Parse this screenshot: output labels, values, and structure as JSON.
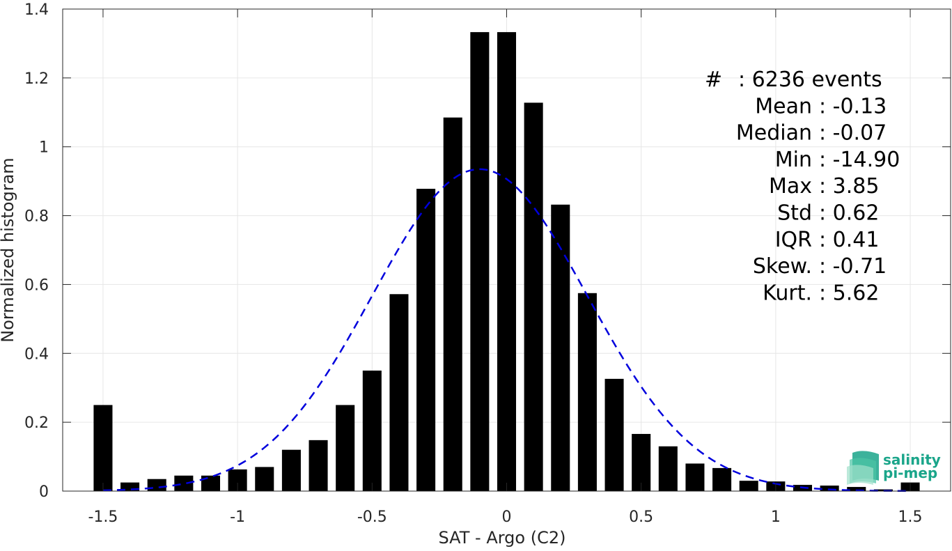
{
  "chart_data": {
    "type": "bar",
    "xlabel": "SAT - Argo (C2)",
    "ylabel": "Normalized histogram",
    "xlim": [
      -1.65,
      1.65
    ],
    "ylim": [
      0,
      1.4
    ],
    "x_ticks": [
      {
        "value": -1.5,
        "label": "-1.5"
      },
      {
        "value": -1,
        "label": "-1"
      },
      {
        "value": -0.5,
        "label": "-0.5"
      },
      {
        "value": 0,
        "label": "0"
      },
      {
        "value": 0.5,
        "label": "0.5"
      },
      {
        "value": 1,
        "label": "1"
      },
      {
        "value": 1.5,
        "label": "1.5"
      }
    ],
    "y_ticks": [
      {
        "value": 0,
        "label": "0"
      },
      {
        "value": 0.2,
        "label": "0.2"
      },
      {
        "value": 0.4,
        "label": "0.4"
      },
      {
        "value": 0.6,
        "label": "0.6"
      },
      {
        "value": 0.8,
        "label": "0.8"
      },
      {
        "value": 1,
        "label": "1"
      },
      {
        "value": 1.2,
        "label": "1.2"
      },
      {
        "value": 1.4,
        "label": "1.4"
      }
    ],
    "grid": true,
    "bar_width": 0.07,
    "bar_color": "#000000",
    "x": [
      -1.5,
      -1.4,
      -1.3,
      -1.2,
      -1.1,
      -1.0,
      -0.9,
      -0.8,
      -0.7,
      -0.6,
      -0.5,
      -0.4,
      -0.3,
      -0.2,
      -0.1,
      0.0,
      0.1,
      0.2,
      0.3,
      0.4,
      0.5,
      0.6,
      0.7,
      0.8,
      0.9,
      1.0,
      1.1,
      1.2,
      1.3,
      1.4,
      1.5
    ],
    "values": [
      0.25,
      0.025,
      0.035,
      0.045,
      0.045,
      0.063,
      0.07,
      0.12,
      0.148,
      0.25,
      0.35,
      0.572,
      0.878,
      1.085,
      1.333,
      1.333,
      1.128,
      0.832,
      0.575,
      0.326,
      0.166,
      0.13,
      0.08,
      0.067,
      0.03,
      0.028,
      0.018,
      0.016,
      0.012,
      0.005,
      0.025
    ],
    "fit_curve": {
      "style": "dashed",
      "color": "#0000dd",
      "mean": -0.1,
      "std": 0.4,
      "peak": 0.935,
      "x_range": [
        -1.5,
        1.5
      ]
    },
    "stats": [
      {
        "label": "#",
        "value": ": 6236 events"
      },
      {
        "label": "Mean",
        "value": ": -0.13"
      },
      {
        "label": "Median",
        "value": ": -0.07"
      },
      {
        "label": "Min",
        "value": ": -14.90"
      },
      {
        "label": "Max",
        "value": ": 3.85"
      },
      {
        "label": "Std",
        "value": ": 0.62"
      },
      {
        "label": "IQR",
        "value": ": 0.41"
      },
      {
        "label": "Skew.",
        "value": ": -0.71"
      },
      {
        "label": "Kurt.",
        "value": ": 5.62"
      }
    ]
  },
  "logo": {
    "line1": "salinity",
    "line2": "pi-mep",
    "color": "#1aa58a"
  }
}
